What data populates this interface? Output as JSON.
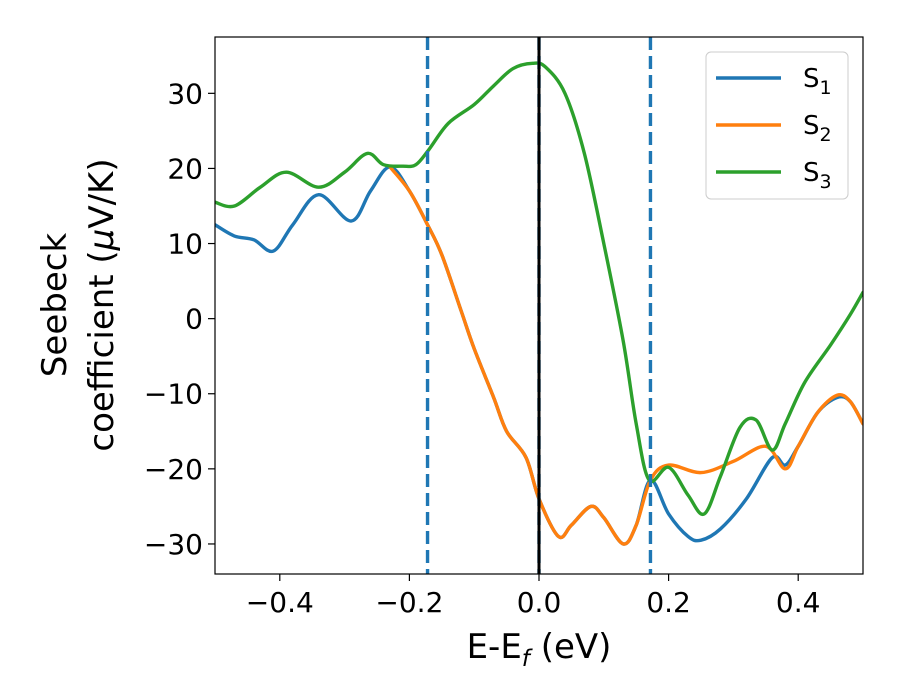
{
  "chart_data": {
    "type": "line",
    "xlabel": {
      "main": "E-E",
      "sub": "f",
      "unit": " (eV)"
    },
    "ylabel": {
      "line1": "Seebeck",
      "line2_text": "coefficient  (",
      "line2_mu": "μ",
      "line2_unit": "V/K)"
    },
    "xlim": [
      -0.5,
      0.5
    ],
    "ylim": [
      -34,
      37.5
    ],
    "xticks": [
      -0.4,
      -0.2,
      0.0,
      0.2,
      0.4
    ],
    "xtick_labels": [
      "−0.4",
      "−0.2",
      "0.0",
      "0.2",
      "0.4"
    ],
    "yticks": [
      30,
      20,
      10,
      0,
      -10,
      -20,
      -30
    ],
    "ytick_labels": [
      "30",
      "20",
      "10",
      "0",
      "−10",
      "−20",
      "−30"
    ],
    "vlines": [
      {
        "x": -0.172,
        "style": "dashed",
        "color": "#1f77b4"
      },
      {
        "x": 0.0,
        "style": "dashed",
        "color": "#1f77b4"
      },
      {
        "x": 0.0,
        "style": "solid",
        "color": "#000000"
      },
      {
        "x": 0.172,
        "style": "dashed",
        "color": "#1f77b4"
      }
    ],
    "legend_position": "top-right",
    "series": [
      {
        "name": "S",
        "sub": "1",
        "color": "#1f77b4",
        "points": [
          [
            -0.5,
            12.5
          ],
          [
            -0.47,
            11.0
          ],
          [
            -0.44,
            10.5
          ],
          [
            -0.41,
            9.0
          ],
          [
            -0.38,
            12.5
          ],
          [
            -0.34,
            16.5
          ],
          [
            -0.29,
            13.0
          ],
          [
            -0.26,
            17.0
          ],
          [
            -0.23,
            20.2
          ],
          [
            -0.2,
            17.0
          ],
          [
            -0.172,
            12.5
          ],
          [
            -0.15,
            8.5
          ],
          [
            -0.12,
            1.0
          ],
          [
            -0.1,
            -4.0
          ],
          [
            -0.07,
            -10.5
          ],
          [
            -0.05,
            -15.0
          ],
          [
            -0.02,
            -18.5
          ],
          [
            0.0,
            -24.0
          ],
          [
            0.03,
            -29.0
          ],
          [
            0.05,
            -27.5
          ],
          [
            0.08,
            -25.0
          ],
          [
            0.1,
            -26.5
          ],
          [
            0.13,
            -30.0
          ],
          [
            0.15,
            -27.5
          ],
          [
            0.172,
            -21.5
          ],
          [
            0.2,
            -26.0
          ],
          [
            0.23,
            -29.0
          ],
          [
            0.25,
            -29.5
          ],
          [
            0.28,
            -28.0
          ],
          [
            0.32,
            -24.0
          ],
          [
            0.36,
            -18.5
          ],
          [
            0.38,
            -19.5
          ],
          [
            0.4,
            -17.0
          ],
          [
            0.43,
            -12.5
          ],
          [
            0.46,
            -10.5
          ],
          [
            0.48,
            -11.0
          ],
          [
            0.5,
            -14.0
          ]
        ]
      },
      {
        "name": "S",
        "sub": "2",
        "color": "#ff7f0e",
        "points": [
          [
            -0.23,
            20.2
          ],
          [
            -0.2,
            17.0
          ],
          [
            -0.172,
            12.5
          ],
          [
            -0.15,
            8.5
          ],
          [
            -0.12,
            1.0
          ],
          [
            -0.1,
            -4.0
          ],
          [
            -0.07,
            -10.5
          ],
          [
            -0.05,
            -15.0
          ],
          [
            -0.02,
            -18.5
          ],
          [
            0.0,
            -24.0
          ],
          [
            0.03,
            -29.0
          ],
          [
            0.05,
            -27.5
          ],
          [
            0.08,
            -25.0
          ],
          [
            0.1,
            -26.5
          ],
          [
            0.13,
            -30.0
          ],
          [
            0.15,
            -27.5
          ],
          [
            0.172,
            -21.5
          ],
          [
            0.2,
            -19.5
          ],
          [
            0.25,
            -20.5
          ],
          [
            0.3,
            -19.0
          ],
          [
            0.35,
            -17.0
          ],
          [
            0.38,
            -20.0
          ],
          [
            0.4,
            -17.0
          ],
          [
            0.43,
            -12.5
          ],
          [
            0.46,
            -10.2
          ],
          [
            0.48,
            -11.0
          ],
          [
            0.5,
            -14.0
          ]
        ]
      },
      {
        "name": "S",
        "sub": "3",
        "color": "#2ca02c",
        "points": [
          [
            -0.5,
            15.5
          ],
          [
            -0.47,
            15.0
          ],
          [
            -0.43,
            17.5
          ],
          [
            -0.39,
            19.5
          ],
          [
            -0.34,
            17.5
          ],
          [
            -0.3,
            19.5
          ],
          [
            -0.265,
            22.0
          ],
          [
            -0.24,
            20.5
          ],
          [
            -0.21,
            20.3
          ],
          [
            -0.19,
            20.5
          ],
          [
            -0.17,
            22.5
          ],
          [
            -0.14,
            26.0
          ],
          [
            -0.1,
            28.5
          ],
          [
            -0.07,
            31.0
          ],
          [
            -0.04,
            33.3
          ],
          [
            -0.01,
            34.0
          ],
          [
            0.01,
            33.5
          ],
          [
            0.04,
            30.0
          ],
          [
            0.07,
            22.0
          ],
          [
            0.1,
            10.0
          ],
          [
            0.13,
            -3.0
          ],
          [
            0.15,
            -14.0
          ],
          [
            0.17,
            -21.5
          ],
          [
            0.2,
            -19.8
          ],
          [
            0.23,
            -23.5
          ],
          [
            0.255,
            -26.0
          ],
          [
            0.28,
            -21.0
          ],
          [
            0.31,
            -14.5
          ],
          [
            0.335,
            -13.5
          ],
          [
            0.36,
            -17.5
          ],
          [
            0.38,
            -14.0
          ],
          [
            0.41,
            -8.5
          ],
          [
            0.45,
            -3.5
          ],
          [
            0.48,
            0.5
          ],
          [
            0.5,
            3.5
          ]
        ]
      }
    ]
  }
}
